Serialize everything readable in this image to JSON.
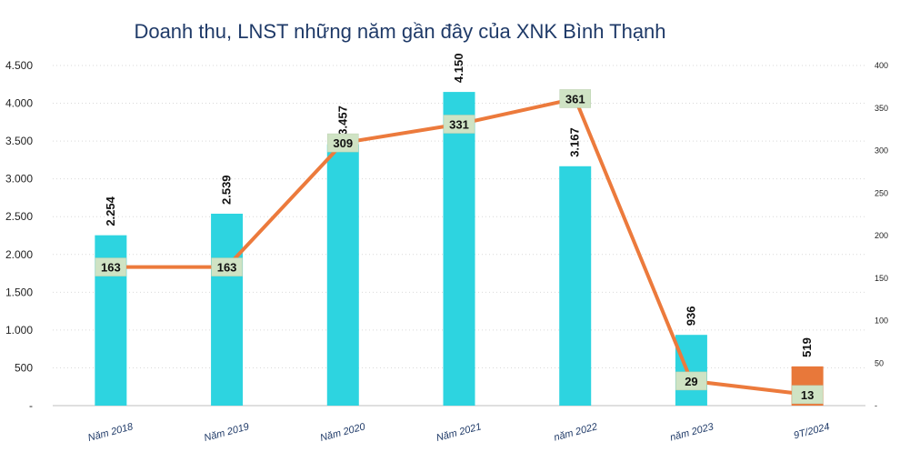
{
  "chart_data": {
    "type": "bar",
    "title": "Doanh thu, LNST những năm gần đây của XNK Bình Thạnh",
    "categories": [
      "Năm 2018",
      "Năm 2019",
      "Năm 2020",
      "Năm 2021",
      "năm 2022",
      "năm 2023",
      "9T/2024"
    ],
    "series": [
      {
        "type": "bar",
        "axis": "left",
        "values": [
          2254,
          2539,
          3457,
          4150,
          3167,
          936,
          519
        ],
        "labels": [
          "2.254",
          "2.539",
          "3.457",
          "4.150",
          "3.167",
          "936",
          "519"
        ],
        "colors": [
          "#2dd4e0",
          "#2dd4e0",
          "#2dd4e0",
          "#2dd4e0",
          "#2dd4e0",
          "#2dd4e0",
          "#e8783a"
        ]
      },
      {
        "type": "line",
        "axis": "right",
        "values": [
          163,
          163,
          309,
          331,
          361,
          29,
          13
        ],
        "labels": [
          "163",
          "163",
          "309",
          "331",
          "361",
          "29",
          "13"
        ],
        "color": "#ec7a3c"
      }
    ],
    "ylim": [
      0,
      4500
    ],
    "yticks": [
      "-",
      "500",
      "1.000",
      "1.500",
      "2.000",
      "2.500",
      "3.000",
      "3.500",
      "4.000",
      "4.500"
    ],
    "y2lim": [
      0,
      400
    ],
    "y2ticks": [
      "-",
      "50",
      "100",
      "150",
      "200",
      "250",
      "300",
      "350",
      "400"
    ],
    "grid": true,
    "legend": "none"
  }
}
